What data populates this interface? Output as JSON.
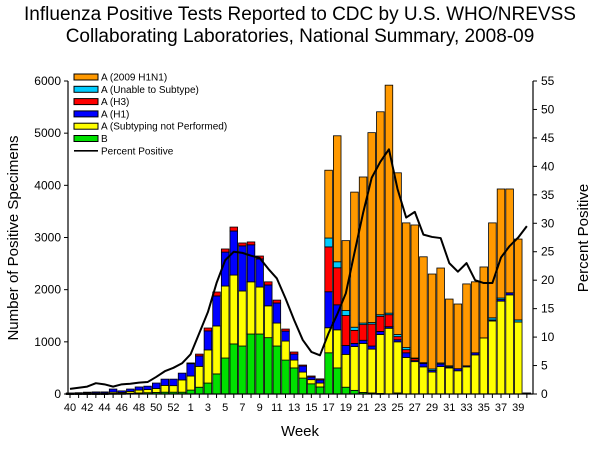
{
  "chart_data": {
    "type": "bar",
    "stacked": true,
    "title_lines": [
      "Influenza Positive Tests Reported to CDC by U.S. WHO/NREVSS",
      "Collaborating Laboratories, National Summary, 2008-09"
    ],
    "xlabel": "Week",
    "ylabel": "Number of Positive Specimens",
    "y2label": "Percent Positive",
    "ylim": [
      0,
      6000
    ],
    "yticks": [
      0,
      1000,
      2000,
      3000,
      4000,
      5000,
      6000
    ],
    "y2lim": [
      0,
      55
    ],
    "y2ticks": [
      0,
      5,
      10,
      15,
      20,
      25,
      30,
      35,
      40,
      45,
      50,
      55
    ],
    "grid": false,
    "legend_position": "top-left",
    "categories": [
      "40",
      "41",
      "42",
      "43",
      "44",
      "45",
      "46",
      "47",
      "48",
      "49",
      "50",
      "51",
      "52",
      "53",
      "1",
      "2",
      "3",
      "4",
      "5",
      "6",
      "7",
      "8",
      "9",
      "10",
      "11",
      "12",
      "13",
      "14",
      "15",
      "16",
      "17",
      "18",
      "19",
      "20",
      "21",
      "22",
      "23",
      "24",
      "25",
      "26",
      "27",
      "28",
      "29",
      "30",
      "31",
      "32",
      "33",
      "34",
      "35",
      "36",
      "37",
      "38",
      "39",
      "40"
    ],
    "xtick_labels": [
      "40",
      "42",
      "44",
      "46",
      "48",
      "50",
      "52",
      "1",
      "3",
      "5",
      "7",
      "9",
      "11",
      "13",
      "15",
      "17",
      "19",
      "21",
      "23",
      "25",
      "27",
      "29",
      "31",
      "33",
      "35",
      "37",
      "39"
    ],
    "series": [
      {
        "name": "B",
        "color": "#00e000",
        "values": [
          5,
          5,
          5,
          5,
          5,
          10,
          10,
          15,
          20,
          25,
          30,
          35,
          35,
          35,
          75,
          130,
          210,
          385,
          690,
          960,
          920,
          1150,
          1150,
          1080,
          920,
          650,
          500,
          305,
          195,
          135,
          790,
          500,
          130,
          70,
          30,
          20,
          10,
          0,
          20,
          0,
          0,
          0,
          0,
          0,
          0,
          0,
          0,
          0,
          0,
          0,
          0,
          0,
          0,
          0
        ]
      },
      {
        "name": "A (Subtyping not Performed)",
        "color": "#ffff00",
        "values": [
          5,
          10,
          15,
          15,
          15,
          25,
          20,
          35,
          55,
          60,
          75,
          130,
          125,
          235,
          270,
          400,
          635,
          920,
          1380,
          1320,
          1055,
          1000,
          900,
          610,
          440,
          365,
          150,
          115,
          80,
          75,
          480,
          730,
          630,
          840,
          940,
          840,
          1130,
          1260,
          980,
          700,
          620,
          520,
          420,
          525,
          500,
          445,
          520,
          750,
          1075,
          1400,
          1780,
          1900,
          1380,
          15
        ]
      },
      {
        "name": "A (H1)",
        "color": "#0000ff",
        "values": [
          10,
          10,
          15,
          20,
          20,
          60,
          30,
          45,
          60,
          65,
          105,
          120,
          125,
          130,
          245,
          200,
          365,
          575,
          650,
          845,
          865,
          710,
          540,
          400,
          385,
          190,
          115,
          115,
          50,
          60,
          690,
          480,
          170,
          60,
          60,
          60,
          60,
          30,
          40,
          90,
          20,
          70,
          30,
          50,
          20,
          40,
          20,
          40,
          0,
          20,
          30,
          40,
          0,
          0
        ]
      },
      {
        "name": "A (H3)",
        "color": "#ff0000",
        "values": [
          0,
          0,
          0,
          0,
          0,
          0,
          0,
          0,
          0,
          0,
          0,
          0,
          0,
          0,
          5,
          35,
          55,
          75,
          60,
          75,
          55,
          55,
          55,
          60,
          55,
          40,
          40,
          20,
          20,
          20,
          860,
          710,
          575,
          250,
          300,
          420,
          290,
          230,
          60,
          60,
          40,
          10,
          0,
          0,
          0,
          0,
          0,
          0,
          0,
          0,
          0,
          0,
          0,
          0
        ]
      },
      {
        "name": "A (Unable to Subtype)",
        "color": "#00ccff",
        "values": [
          0,
          0,
          0,
          0,
          0,
          0,
          0,
          0,
          0,
          0,
          0,
          0,
          0,
          0,
          0,
          0,
          0,
          0,
          0,
          0,
          0,
          0,
          0,
          0,
          0,
          0,
          0,
          0,
          0,
          0,
          170,
          115,
          95,
          60,
          30,
          30,
          30,
          30,
          40,
          40,
          10,
          0,
          30,
          20,
          20,
          0,
          0,
          0,
          0,
          40,
          30,
          0,
          40,
          5
        ]
      },
      {
        "name": "A (2009 H1N1)",
        "color": "#ff9900",
        "values": [
          0,
          0,
          0,
          0,
          0,
          0,
          0,
          0,
          0,
          0,
          0,
          0,
          0,
          0,
          0,
          0,
          0,
          0,
          0,
          0,
          0,
          0,
          0,
          0,
          0,
          0,
          0,
          0,
          0,
          0,
          1300,
          2415,
          1340,
          2590,
          2800,
          3640,
          3890,
          4370,
          3100,
          2390,
          2550,
          2030,
          1820,
          1820,
          1280,
          1240,
          1570,
          1360,
          1360,
          1820,
          2090,
          1990,
          1550,
          0
        ]
      }
    ],
    "line_series": {
      "name": "Percent Positive",
      "color": "#000000",
      "axis": "right",
      "values": [
        0.9,
        1.1,
        1.3,
        1.9,
        1.7,
        1.3,
        1.7,
        1.8,
        2.0,
        2.1,
        3.0,
        4.0,
        4.6,
        5.4,
        7.0,
        10.7,
        14.4,
        19.5,
        23.5,
        25.0,
        24.8,
        24.3,
        23.9,
        22.0,
        20.3,
        16.8,
        13.0,
        9.5,
        7.4,
        6.8,
        10.7,
        14.0,
        17.7,
        24.8,
        31.8,
        38.0,
        40.8,
        43.0,
        36.0,
        31.0,
        32.0,
        28.0,
        27.6,
        27.4,
        23.0,
        21.5,
        23.0,
        20.0,
        19.5,
        19.5,
        24.0,
        26.0,
        27.5,
        29.5
      ]
    },
    "legend_order": [
      "A (2009 H1N1)",
      "A (Unable to Subtype)",
      "A (H3)",
      "A (H1)",
      "A (Subtyping not Performed)",
      "B",
      "Percent Positive"
    ]
  }
}
